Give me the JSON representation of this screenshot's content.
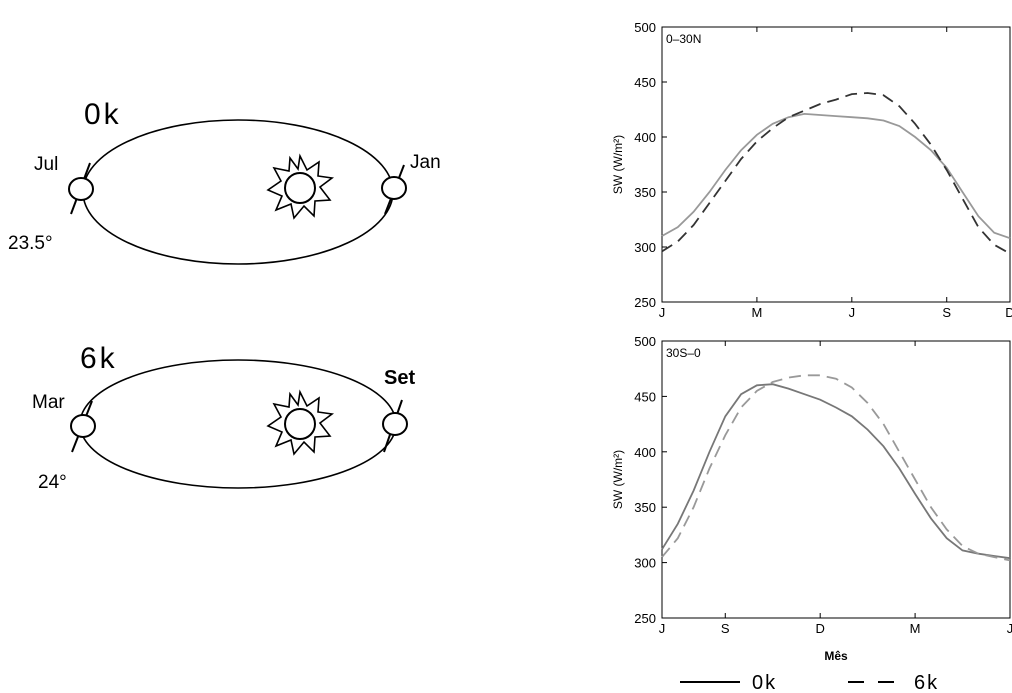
{
  "diagram": {
    "top": {
      "era": "0k",
      "left_month": "Jul",
      "right_month": "Jan",
      "tilt": "23.5°"
    },
    "bottom": {
      "era": "6k",
      "left_month": "Mar",
      "right_month": "Set",
      "tilt": "24°"
    }
  },
  "chart_data": [
    {
      "type": "line",
      "panel_label": "0–30N",
      "ylabel": "SW (W/m²)",
      "ylim": [
        250,
        500
      ],
      "yticks": [
        250,
        300,
        350,
        400,
        450,
        500
      ],
      "xlim": [
        1,
        12
      ],
      "xticks": [
        {
          "m": 1,
          "label": "J"
        },
        {
          "m": 4,
          "label": "M"
        },
        {
          "m": 7,
          "label": "J"
        },
        {
          "m": 10,
          "label": "S"
        },
        {
          "m": 12,
          "label": "D"
        }
      ],
      "series": [
        {
          "name": "0k",
          "style": "solid",
          "color": "#999999",
          "x": [
            1,
            1.5,
            2,
            2.5,
            3,
            3.5,
            4,
            4.5,
            5,
            5.5,
            6,
            6.5,
            7,
            7.5,
            8,
            8.5,
            9,
            9.5,
            10,
            10.5,
            11,
            11.5,
            12
          ],
          "y": [
            310,
            318,
            332,
            350,
            370,
            388,
            402,
            412,
            418,
            421,
            420,
            419,
            418,
            417,
            415,
            410,
            400,
            388,
            372,
            350,
            328,
            313,
            308
          ]
        },
        {
          "name": "6k",
          "style": "dashed",
          "color": "#333333",
          "x": [
            1,
            1.5,
            2,
            2.5,
            3,
            3.5,
            4,
            4.5,
            5,
            5.5,
            6,
            6.5,
            7,
            7.5,
            8,
            8.5,
            9,
            9.5,
            10,
            10.5,
            11,
            11.5,
            12
          ],
          "y": [
            296,
            305,
            320,
            340,
            360,
            380,
            396,
            408,
            418,
            424,
            430,
            434,
            439,
            440,
            438,
            428,
            412,
            393,
            370,
            344,
            318,
            302,
            294
          ]
        }
      ]
    },
    {
      "type": "line",
      "panel_label": "30S–0",
      "ylabel": "SW (W/m²)",
      "xlabel": "Mês",
      "ylim": [
        250,
        500
      ],
      "yticks": [
        250,
        300,
        350,
        400,
        450,
        500
      ],
      "xlim": [
        7,
        18
      ],
      "xticks": [
        {
          "m": 7,
          "label": "J"
        },
        {
          "m": 9,
          "label": "S"
        },
        {
          "m": 12,
          "label": "D"
        },
        {
          "m": 15,
          "label": "M"
        },
        {
          "m": 18,
          "label": "J"
        }
      ],
      "series": [
        {
          "name": "0k",
          "style": "solid",
          "color": "#777777",
          "x": [
            7,
            7.5,
            8,
            8.5,
            9,
            9.5,
            10,
            10.5,
            11,
            11.5,
            12,
            12.5,
            13,
            13.5,
            14,
            14.5,
            15,
            15.5,
            16,
            16.5,
            17,
            17.5,
            18
          ],
          "y": [
            312,
            335,
            365,
            400,
            432,
            452,
            460,
            461,
            457,
            452,
            447,
            440,
            432,
            420,
            405,
            385,
            362,
            340,
            322,
            311,
            308,
            306,
            304
          ]
        },
        {
          "name": "6k",
          "style": "dashed",
          "color": "#999999",
          "x": [
            7,
            7.5,
            8,
            8.5,
            9,
            9.5,
            10,
            10.5,
            11,
            11.5,
            12,
            12.5,
            13,
            13.5,
            14,
            14.5,
            15,
            15.5,
            16,
            16.5,
            17,
            17.5,
            18
          ],
          "y": [
            305,
            322,
            350,
            385,
            415,
            440,
            455,
            463,
            467,
            469,
            469,
            466,
            458,
            444,
            425,
            400,
            375,
            350,
            330,
            315,
            308,
            305,
            302
          ]
        }
      ]
    }
  ],
  "legend": [
    {
      "label": "0k",
      "style": "solid"
    },
    {
      "label": "6k",
      "style": "dashed"
    }
  ]
}
